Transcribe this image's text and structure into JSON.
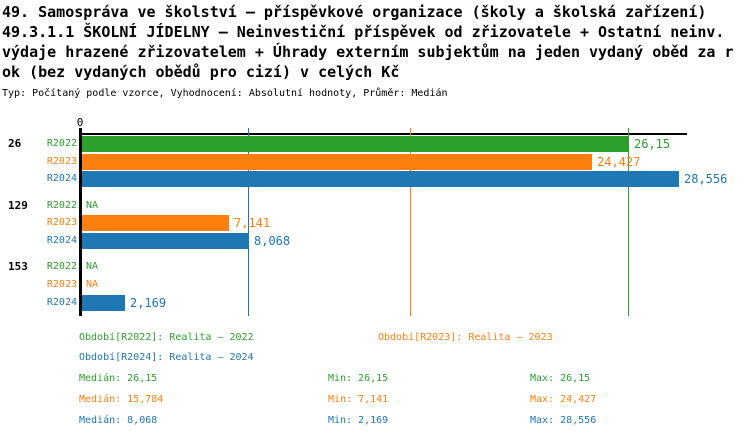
{
  "header": {
    "title_lines": [
      "49. Samospráva ve školství – příspěvkové organizace (školy a školská zařízení)",
      "49.3.1.1 ŠKOLNÍ JÍDELNY – Neinvestiční příspěvek od zřizovatele + Ostatní neinv.",
      "výdaje hrazené zřizovatelem + Úhrady externím subjektům na jeden vydaný oběd za r",
      "ok (bez vydaných obědů pro cizí) v celých Kč"
    ],
    "subtitle": "Typ: Počítaný podle vzorce, Vyhodnocení: Absolutní hodnoty, Průměr: Medián"
  },
  "colors": {
    "R2022": "#2ca02c",
    "R2023": "#ff7f0e",
    "R2024": "#1f77b4",
    "axis": "#000000",
    "background": "#ffffff"
  },
  "chart_data": {
    "type": "bar",
    "orientation": "horizontal",
    "x_axis": {
      "origin_label": "0",
      "min": 0,
      "max_visible": 28.9,
      "grid": "median lines per series"
    },
    "series_order": [
      "R2022",
      "R2023",
      "R2024"
    ],
    "groups": [
      {
        "label": "26",
        "bars": [
          {
            "series": "R2022",
            "value": 26.15,
            "display": "26,15"
          },
          {
            "series": "R2023",
            "value": 24.427,
            "display": "24,427"
          },
          {
            "series": "R2024",
            "value": 28.556,
            "display": "28,556"
          }
        ]
      },
      {
        "label": "129",
        "bars": [
          {
            "series": "R2022",
            "value": null,
            "display": "NA"
          },
          {
            "series": "R2023",
            "value": 7.141,
            "display": "7,141"
          },
          {
            "series": "R2024",
            "value": 8.068,
            "display": "8,068"
          }
        ]
      },
      {
        "label": "153",
        "bars": [
          {
            "series": "R2022",
            "value": null,
            "display": "NA"
          },
          {
            "series": "R2023",
            "value": null,
            "display": "NA"
          },
          {
            "series": "R2024",
            "value": 2.169,
            "display": "2,169"
          }
        ]
      }
    ],
    "median_gridlines": [
      {
        "series": "R2024",
        "value": 8.068
      },
      {
        "series": "R2023",
        "value": 15.784
      },
      {
        "series": "R2022",
        "value": 26.15
      }
    ]
  },
  "legend": {
    "periods": [
      {
        "series": "R2022",
        "text": "Období[R2022]: Realita – 2022"
      },
      {
        "series": "R2023",
        "text": "Období[R2023]: Realita – 2023"
      },
      {
        "series": "R2024",
        "text": "Období[R2024]: Realita – 2024"
      }
    ],
    "stat_labels": {
      "median": "Medián",
      "min": "Min",
      "max": "Max"
    },
    "stats": [
      {
        "series": "R2022",
        "median": "26,15",
        "min": "26,15",
        "max": "26,15"
      },
      {
        "series": "R2023",
        "median": "15,784",
        "min": "7,141",
        "max": "24,427"
      },
      {
        "series": "R2024",
        "median": "8,068",
        "min": "2,169",
        "max": "28,556"
      }
    ]
  }
}
